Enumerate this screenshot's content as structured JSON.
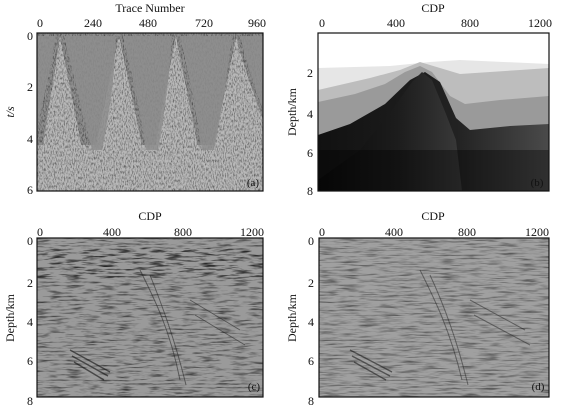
{
  "figure": {
    "panels": [
      {
        "id": "a",
        "label": "(a)",
        "title": "Trace Number",
        "ylabel": "t/s",
        "x_ticks": [
          "0",
          "240",
          "480",
          "720",
          "960"
        ],
        "y_ticks": [
          "0",
          "2",
          "4",
          "6"
        ],
        "content": "shot-gather-seismic-traces"
      },
      {
        "id": "b",
        "label": "(b)",
        "title": "CDP",
        "ylabel": "Depth/km",
        "x_ticks": [
          "0",
          "400",
          "800",
          "1200"
        ],
        "y_ticks": [
          "2",
          "4",
          "6",
          "8"
        ],
        "content": "velocity-model-salt-body"
      },
      {
        "id": "c",
        "label": "(c)",
        "title": "CDP",
        "ylabel": "Depth/km",
        "x_ticks": [
          "0",
          "400",
          "800",
          "1200"
        ],
        "y_ticks": [
          "0",
          "2",
          "4",
          "6",
          "8"
        ],
        "content": "migrated-seismic-image"
      },
      {
        "id": "d",
        "label": "(d)",
        "title": "CDP",
        "ylabel": "Depth/km",
        "x_ticks": [
          "0",
          "400",
          "800",
          "1200"
        ],
        "y_ticks": [
          "0",
          "2",
          "4",
          "6",
          "8"
        ],
        "content": "migrated-seismic-image"
      }
    ],
    "colors": {
      "frame": "#111111",
      "gather_background": "#8e8e8e",
      "seismic_background": "#9a9a9a",
      "model_top": "#e8e8e8",
      "model_bottom": "#000000"
    }
  }
}
